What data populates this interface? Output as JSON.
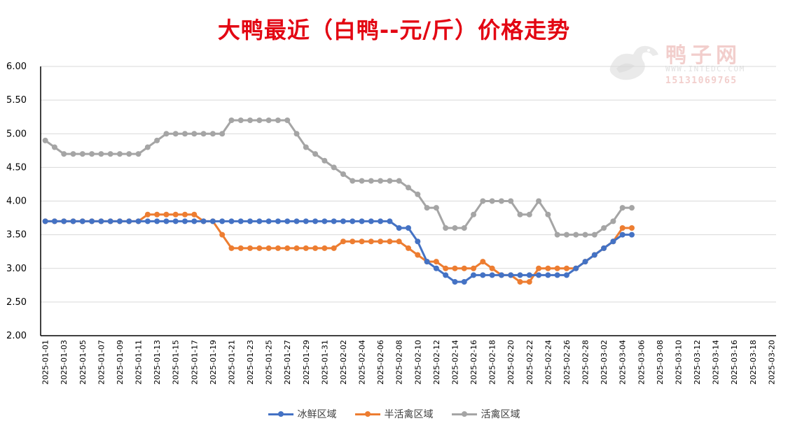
{
  "chart_data": {
    "type": "line",
    "title": "大鸭最近（白鸭--元/斤）价格走势",
    "ylim": [
      2.0,
      6.0
    ],
    "yticks": [
      "2.00",
      "2.50",
      "3.00",
      "3.50",
      "4.00",
      "4.50",
      "5.00",
      "5.50",
      "6.00"
    ],
    "grid": true,
    "legend_position": "bottom",
    "x_start": "2025-01-01",
    "x_end": "2025-03-20",
    "xtick_labels": [
      "2025-01-01",
      "2025-01-03",
      "2025-01-05",
      "2025-01-07",
      "2025-01-09",
      "2025-01-11",
      "2025-01-13",
      "2025-01-15",
      "2025-01-17",
      "2025-01-19",
      "2025-01-21",
      "2025-01-23",
      "2025-01-25",
      "2025-01-27",
      "2025-01-29",
      "2025-01-31",
      "2025-02-02",
      "2025-02-04",
      "2025-02-06",
      "2025-02-08",
      "2025-02-10",
      "2025-02-12",
      "2025-02-14",
      "2025-02-16",
      "2025-02-18",
      "2025-02-20",
      "2025-02-22",
      "2025-02-24",
      "2025-02-26",
      "2025-02-28",
      "2025-03-02",
      "2025-03-04",
      "2025-03-06",
      "2025-03-08",
      "2025-03-10",
      "2025-03-12",
      "2025-03-14",
      "2025-03-16",
      "2025-03-18",
      "2025-03-20"
    ],
    "series": [
      {
        "name": "冰鲜区域",
        "color": "#4472c4",
        "values": [
          3.7,
          3.7,
          3.7,
          3.7,
          3.7,
          3.7,
          3.7,
          3.7,
          3.7,
          3.7,
          3.7,
          3.7,
          3.7,
          3.7,
          3.7,
          3.7,
          3.7,
          3.7,
          3.7,
          3.7,
          3.7,
          3.7,
          3.7,
          3.7,
          3.7,
          3.7,
          3.7,
          3.7,
          3.7,
          3.7,
          3.7,
          3.7,
          3.7,
          3.7,
          3.7,
          3.7,
          3.7,
          3.7,
          3.6,
          3.6,
          3.4,
          3.1,
          3.0,
          2.9,
          2.8,
          2.8,
          2.9,
          2.9,
          2.9,
          2.9,
          2.9,
          2.9,
          2.9,
          2.9,
          2.9,
          2.9,
          2.9,
          3.0,
          3.1,
          3.2,
          3.3,
          3.4,
          3.5,
          3.5
        ]
      },
      {
        "name": "半活禽区域",
        "color": "#ed7d31",
        "values": [
          3.7,
          3.7,
          3.7,
          3.7,
          3.7,
          3.7,
          3.7,
          3.7,
          3.7,
          3.7,
          3.7,
          3.8,
          3.8,
          3.8,
          3.8,
          3.8,
          3.8,
          3.7,
          3.7,
          3.5,
          3.3,
          3.3,
          3.3,
          3.3,
          3.3,
          3.3,
          3.3,
          3.3,
          3.3,
          3.3,
          3.3,
          3.3,
          3.4,
          3.4,
          3.4,
          3.4,
          3.4,
          3.4,
          3.4,
          3.3,
          3.2,
          3.1,
          3.1,
          3.0,
          3.0,
          3.0,
          3.0,
          3.1,
          3.0,
          2.9,
          2.9,
          2.8,
          2.8,
          3.0,
          3.0,
          3.0,
          3.0,
          3.0,
          3.1,
          3.2,
          3.3,
          3.4,
          3.6,
          3.6
        ]
      },
      {
        "name": "活禽区域",
        "color": "#a5a5a5",
        "values": [
          4.9,
          4.8,
          4.7,
          4.7,
          4.7,
          4.7,
          4.7,
          4.7,
          4.7,
          4.7,
          4.7,
          4.8,
          4.9,
          5.0,
          5.0,
          5.0,
          5.0,
          5.0,
          5.0,
          5.0,
          5.2,
          5.2,
          5.2,
          5.2,
          5.2,
          5.2,
          5.2,
          5.0,
          4.8,
          4.7,
          4.6,
          4.5,
          4.4,
          4.3,
          4.3,
          4.3,
          4.3,
          4.3,
          4.3,
          4.2,
          4.1,
          3.9,
          3.9,
          3.6,
          3.6,
          3.6,
          3.8,
          4.0,
          4.0,
          4.0,
          4.0,
          3.8,
          3.8,
          4.0,
          3.8,
          3.5,
          3.5,
          3.5,
          3.5,
          3.5,
          3.6,
          3.7,
          3.9,
          3.9
        ]
      }
    ]
  },
  "watermark": {
    "name": "鸭子网",
    "url": "WWW.INTEDC.COM",
    "phone": "15131069765"
  }
}
